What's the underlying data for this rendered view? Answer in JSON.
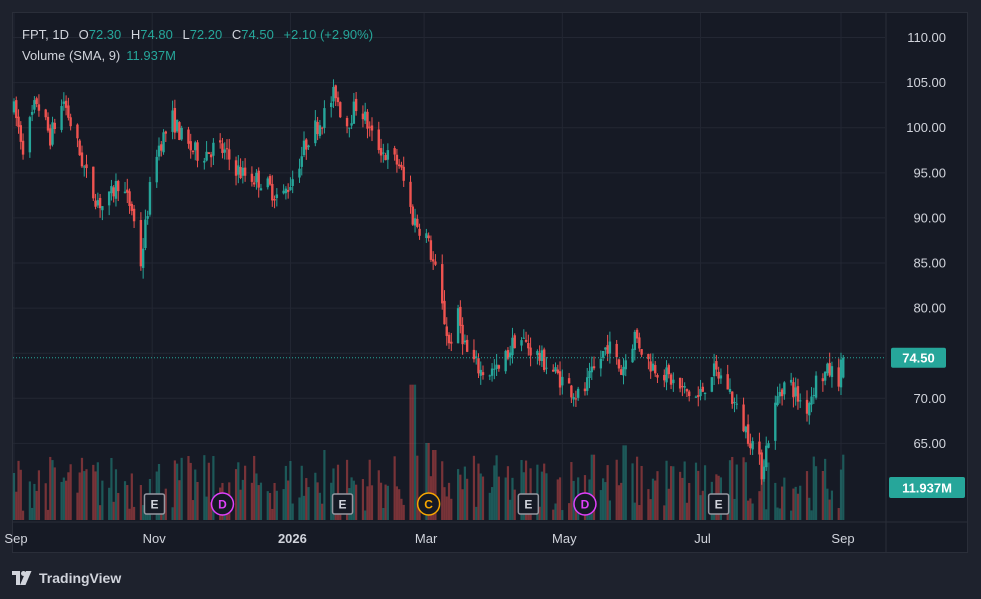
{
  "legend": {
    "symbol": "FPT",
    "interval": "1D",
    "open_label": "O",
    "open": "72.30",
    "high_label": "H",
    "high": "74.80",
    "low_label": "L",
    "low": "72.20",
    "close_label": "C",
    "close": "74.50",
    "change": "+2.10 (+2.90%)",
    "volume_label": "Volume (SMA, 9)",
    "volume_value": "11.937M"
  },
  "branding": {
    "name": "TradingView"
  },
  "colors": {
    "up": "#26a69a",
    "down": "#ef5350",
    "background": "#161a25",
    "grid": "#232733",
    "text": "#d1d4dc",
    "dividend": "#e040fb",
    "split": "#f7a600",
    "earnings": "#9598a1"
  },
  "chart_data": {
    "type": "candlestick",
    "symbol": "FPT",
    "interval": "1D",
    "y_axis": {
      "range": [
        58.5,
        112.5
      ],
      "ticks": [
        "110.00",
        "105.00",
        "100.00",
        "95.00",
        "90.00",
        "85.00",
        "80.00",
        "75.00",
        "70.00",
        "65.00"
      ]
    },
    "x_axis": {
      "labels": [
        {
          "text": "Sep",
          "bold": false,
          "day": 0
        },
        {
          "text": "Nov",
          "bold": false,
          "day": 61
        },
        {
          "text": "2026",
          "bold": true,
          "day": 122
        },
        {
          "text": "Mar",
          "bold": false,
          "day": 181
        },
        {
          "text": "May",
          "bold": false,
          "day": 242
        },
        {
          "text": "Jul",
          "bold": false,
          "day": 303
        },
        {
          "text": "Sep",
          "bold": false,
          "day": 365
        }
      ]
    },
    "last_price": "74.50",
    "last_volume": "11.937M",
    "price_path": [
      [
        0,
        102
      ],
      [
        4,
        98
      ],
      [
        10,
        103
      ],
      [
        16,
        99
      ],
      [
        22,
        103
      ],
      [
        28,
        98
      ],
      [
        34,
        93
      ],
      [
        40,
        91
      ],
      [
        46,
        94
      ],
      [
        52,
        91
      ],
      [
        56,
        85
      ],
      [
        62,
        97
      ],
      [
        66,
        99
      ],
      [
        70,
        101
      ],
      [
        76,
        98
      ],
      [
        82,
        97
      ],
      [
        90,
        98
      ],
      [
        100,
        95
      ],
      [
        110,
        94
      ],
      [
        118,
        92
      ],
      [
        124,
        95
      ],
      [
        130,
        99
      ],
      [
        136,
        101
      ],
      [
        142,
        104
      ],
      [
        146,
        100
      ],
      [
        152,
        103
      ],
      [
        158,
        99
      ],
      [
        164,
        97
      ],
      [
        170,
        96
      ],
      [
        176,
        90
      ],
      [
        182,
        88
      ],
      [
        186,
        84
      ],
      [
        189,
        80
      ],
      [
        192,
        76
      ],
      [
        196,
        79
      ],
      [
        200,
        75
      ],
      [
        206,
        73
      ],
      [
        214,
        73
      ],
      [
        222,
        77
      ],
      [
        230,
        75
      ],
      [
        238,
        73
      ],
      [
        246,
        71
      ],
      [
        250,
        70
      ],
      [
        256,
        73
      ],
      [
        262,
        76
      ],
      [
        268,
        73
      ],
      [
        274,
        77
      ],
      [
        280,
        74
      ],
      [
        286,
        73
      ],
      [
        294,
        71
      ],
      [
        302,
        70
      ],
      [
        308,
        73
      ],
      [
        314,
        72
      ],
      [
        320,
        68
      ],
      [
        326,
        65
      ],
      [
        330,
        62
      ],
      [
        334,
        67
      ],
      [
        338,
        71
      ],
      [
        342,
        72
      ],
      [
        346,
        70
      ],
      [
        350,
        69
      ],
      [
        354,
        72
      ],
      [
        360,
        73
      ],
      [
        364,
        72.3
      ],
      [
        366,
        74.5
      ]
    ],
    "last_candle": {
      "open": 72.3,
      "high": 74.8,
      "low": 72.2,
      "close": 74.5
    },
    "event_markers": [
      {
        "label": "E",
        "type": "earnings",
        "day": 62
      },
      {
        "label": "D",
        "type": "dividend",
        "day": 92
      },
      {
        "label": "E",
        "type": "earnings",
        "day": 145
      },
      {
        "label": "C",
        "type": "split",
        "day": 183
      },
      {
        "label": "E",
        "type": "earnings",
        "day": 227
      },
      {
        "label": "D",
        "type": "dividend",
        "day": 252
      },
      {
        "label": "E",
        "type": "earnings",
        "day": 311
      }
    ],
    "volume": {
      "unit": "M",
      "typical_range": [
        4,
        28
      ],
      "spikes": [
        {
          "day": 176,
          "value": 58
        },
        {
          "day": 182,
          "value": 33
        },
        {
          "day": 186,
          "value": 30
        },
        {
          "day": 138,
          "value": 30
        },
        {
          "day": 270,
          "value": 32
        },
        {
          "day": 256,
          "value": 28
        }
      ]
    }
  }
}
